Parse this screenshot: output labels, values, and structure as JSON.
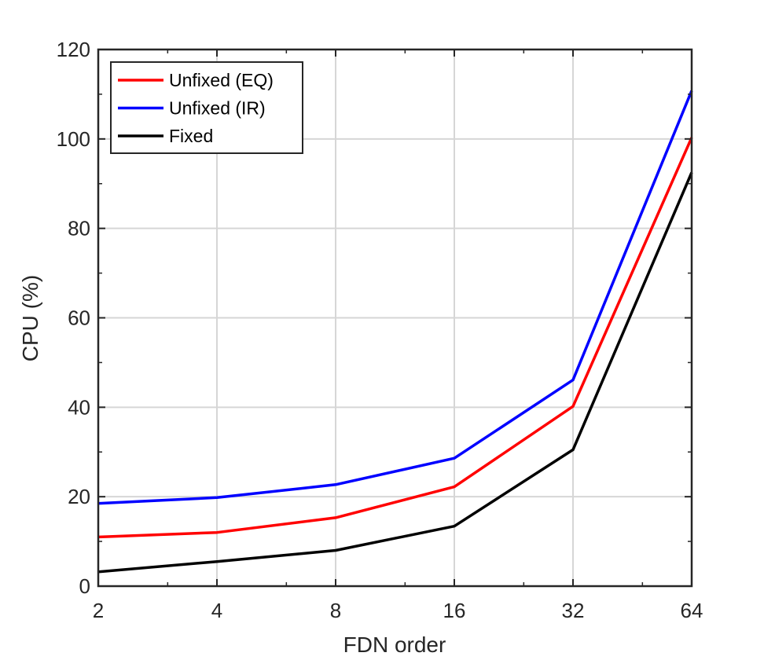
{
  "chart_data": {
    "type": "line",
    "xlabel": "FDN order",
    "ylabel": "CPU (%)",
    "x": [
      2,
      4,
      8,
      16,
      32,
      64
    ],
    "x_scale": "log2",
    "xlim": [
      2,
      64
    ],
    "ylim": [
      0,
      120
    ],
    "yticks": [
      0,
      20,
      40,
      60,
      80,
      100,
      120
    ],
    "xticks": [
      "2",
      "4",
      "8",
      "16",
      "32",
      "64"
    ],
    "grid": true,
    "legend_position": "top-left",
    "series": [
      {
        "name": "Unfixed (EQ)",
        "color": "#ff0000",
        "values": [
          11,
          12,
          15.3,
          22.2,
          40.2,
          100.3
        ]
      },
      {
        "name": "Unfixed (IR)",
        "color": "#0000ff",
        "values": [
          18.5,
          19.8,
          22.7,
          28.6,
          46.1,
          110.8
        ]
      },
      {
        "name": "Fixed",
        "color": "#000000",
        "values": [
          3.2,
          5.5,
          8,
          13.4,
          30.5,
          92.5
        ]
      }
    ]
  }
}
